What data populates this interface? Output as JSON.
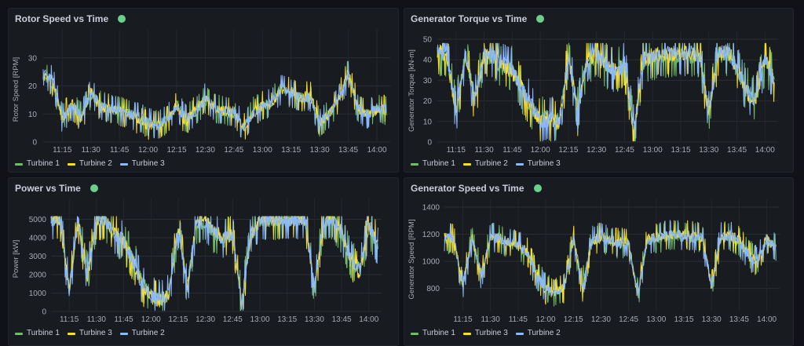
{
  "colors": {
    "background": "#111217",
    "panel": "#181b1f",
    "status_ok": "#6ccf8e",
    "green": "#73bf69",
    "yellow": "#fade2a",
    "blue": "#8ab8ff"
  },
  "chart_data": [
    {
      "type": "line",
      "title": "Rotor Speed vs Time",
      "ylabel": "Rotor Speed [RPM]",
      "ylim": [
        0,
        37.5
      ],
      "yticks": [
        "0",
        "10",
        "20",
        "30"
      ],
      "ytick_values": [
        0,
        10,
        20,
        30
      ],
      "xticks": [
        "11:15",
        "11:30",
        "11:45",
        "12:00",
        "12:15",
        "12:30",
        "12:45",
        "13:00",
        "13:15",
        "13:30",
        "13:45",
        "14:00"
      ],
      "xrange": [
        "11:05",
        "14:07"
      ],
      "x_step_minutes": 5,
      "x_start": "11:05",
      "grid": true,
      "legend": "bottom-left",
      "series": [
        {
          "name": "Turbine 1",
          "color": "#73bf69",
          "values": [
            24,
            21,
            9,
            13,
            9,
            17,
            13,
            12,
            11,
            10,
            9,
            7,
            6,
            8,
            14,
            8,
            11,
            15,
            12,
            11,
            10,
            5,
            11,
            13,
            14,
            20,
            17,
            16,
            16,
            7,
            10,
            15,
            25,
            12,
            10,
            12,
            11
          ]
        },
        {
          "name": "Turbine 2",
          "color": "#fade2a",
          "values": [
            23,
            22,
            8,
            14,
            8,
            18,
            12,
            12,
            11,
            10,
            8,
            6,
            6,
            8,
            13,
            7,
            12,
            16,
            12,
            11,
            11,
            5,
            10,
            13,
            13,
            19,
            18,
            16,
            17,
            7,
            10,
            16,
            25,
            12,
            10,
            11,
            12
          ]
        },
        {
          "name": "Turbine 3",
          "color": "#8ab8ff",
          "values": [
            25,
            22,
            8,
            13,
            9,
            18,
            13,
            12,
            11,
            10,
            9,
            7,
            6,
            8,
            13,
            8,
            11,
            16,
            12,
            11,
            11,
            5,
            10,
            13,
            14,
            19,
            17,
            16,
            16,
            7,
            10,
            15,
            24,
            12,
            10,
            12,
            12
          ]
        }
      ]
    },
    {
      "type": "line",
      "title": "Generator Torque vs Time",
      "ylabel": "Generator Torque [kN-m]",
      "ylim": [
        0,
        50
      ],
      "yticks": [
        "0",
        "10",
        "20",
        "30",
        "40",
        "50"
      ],
      "ytick_values": [
        0,
        10,
        20,
        30,
        40,
        50
      ],
      "xticks": [
        "11:15",
        "11:30",
        "11:45",
        "12:00",
        "12:15",
        "12:30",
        "12:45",
        "13:00",
        "13:15",
        "13:30",
        "13:45",
        "14:00"
      ],
      "xrange": [
        "11:05",
        "14:07"
      ],
      "x_step_minutes": 5,
      "x_start": "11:05",
      "grid": true,
      "legend": "bottom-left",
      "series": [
        {
          "name": "Turbine 1",
          "color": "#73bf69",
          "values": [
            43,
            42,
            15,
            42,
            22,
            42,
            41,
            36,
            36,
            25,
            17,
            11,
            12,
            10,
            41,
            16,
            39,
            42,
            37,
            33,
            39,
            6,
            39,
            41,
            42,
            42,
            42,
            42,
            42,
            16,
            42,
            43,
            35,
            26,
            21,
            39,
            31
          ]
        },
        {
          "name": "Turbine 2",
          "color": "#fade2a",
          "values": [
            44,
            43,
            13,
            43,
            20,
            43,
            42,
            38,
            34,
            27,
            17,
            10,
            11,
            9,
            42,
            14,
            40,
            43,
            38,
            35,
            38,
            5,
            40,
            42,
            43,
            43,
            43,
            43,
            43,
            14,
            43,
            44,
            37,
            24,
            20,
            41,
            30
          ]
        },
        {
          "name": "Turbine 3",
          "color": "#8ab8ff",
          "values": [
            44,
            43,
            14,
            43,
            21,
            43,
            42,
            38,
            35,
            26,
            18,
            10,
            12,
            9,
            42,
            15,
            40,
            43,
            38,
            34,
            38,
            6,
            40,
            42,
            43,
            43,
            43,
            43,
            43,
            15,
            43,
            44,
            36,
            25,
            20,
            40,
            30
          ]
        }
      ]
    },
    {
      "type": "line",
      "title": "Power vs Time",
      "ylabel": "Power [kW]",
      "ylim": [
        0,
        5700
      ],
      "yticks": [
        "0",
        "1000",
        "2000",
        "3000",
        "4000",
        "5000"
      ],
      "ytick_values": [
        0,
        1000,
        2000,
        3000,
        4000,
        5000
      ],
      "xticks": [
        "11:15",
        "11:30",
        "11:45",
        "12:00",
        "12:15",
        "12:30",
        "12:45",
        "13:00",
        "13:15",
        "13:30",
        "13:45",
        "14:00"
      ],
      "xrange": [
        "11:05",
        "14:07"
      ],
      "x_step_minutes": 5,
      "x_start": "11:05",
      "grid": true,
      "legend": "bottom-left",
      "series": [
        {
          "name": "Turbine 1",
          "color": "#73bf69",
          "values": [
            5000,
            5000,
            1300,
            4850,
            2000,
            5000,
            4900,
            4100,
            3700,
            2900,
            1600,
            900,
            600,
            1100,
            4500,
            1400,
            4700,
            4900,
            4200,
            3800,
            4300,
            450,
            4100,
            4950,
            4950,
            5000,
            5000,
            5000,
            5000,
            1300,
            4950,
            5000,
            4100,
            2900,
            2300,
            4600,
            3500
          ]
        },
        {
          "name": "Turbine 3",
          "color": "#fade2a",
          "values": [
            5000,
            4950,
            1100,
            4900,
            1800,
            5000,
            4900,
            4300,
            3900,
            2700,
            1500,
            800,
            550,
            1000,
            4600,
            1200,
            4800,
            4900,
            4400,
            4000,
            4200,
            350,
            4200,
            4950,
            4950,
            5000,
            5000,
            5000,
            5000,
            1100,
            4950,
            5000,
            4300,
            2700,
            2100,
            4700,
            3600
          ]
        },
        {
          "name": "Turbine 2",
          "color": "#8ab8ff",
          "values": [
            5000,
            5000,
            1200,
            4900,
            1900,
            5000,
            4900,
            4200,
            3800,
            2800,
            1500,
            800,
            600,
            1000,
            4600,
            1300,
            4800,
            4900,
            4300,
            3900,
            4200,
            400,
            4200,
            4950,
            4950,
            5000,
            5000,
            5000,
            5000,
            1200,
            4950,
            5000,
            4200,
            2800,
            2200,
            4700,
            3500
          ]
        }
      ]
    },
    {
      "type": "line",
      "title": "Generator Speed vs Time",
      "ylabel": "Generator Speed [RPM]",
      "ylim": [
        630,
        1400
      ],
      "yticks": [
        "800",
        "1000",
        "1200",
        "1400"
      ],
      "ytick_values": [
        800,
        1000,
        1200,
        1400
      ],
      "xticks": [
        "11:15",
        "11:30",
        "11:45",
        "12:00",
        "12:15",
        "12:30",
        "12:45",
        "13:00",
        "13:15",
        "13:30",
        "13:45",
        "14:00"
      ],
      "xrange": [
        "11:05",
        "14:07"
      ],
      "x_step_minutes": 5,
      "x_start": "11:05",
      "grid": true,
      "legend": "bottom-left",
      "series": [
        {
          "name": "Turbine 1",
          "color": "#73bf69",
          "values": [
            1170,
            1160,
            830,
            1160,
            910,
            1170,
            1160,
            1130,
            1120,
            1050,
            910,
            810,
            770,
            810,
            1160,
            830,
            1140,
            1170,
            1140,
            1120,
            1150,
            750,
            1140,
            1170,
            1180,
            1190,
            1180,
            1170,
            1170,
            830,
            1170,
            1180,
            1140,
            1060,
            1010,
            1160,
            1100
          ]
        },
        {
          "name": "Turbine 3",
          "color": "#fade2a",
          "values": [
            1190,
            1170,
            810,
            1180,
            890,
            1180,
            1170,
            1150,
            1110,
            1070,
            900,
            790,
            760,
            800,
            1170,
            810,
            1150,
            1180,
            1160,
            1140,
            1140,
            740,
            1160,
            1180,
            1190,
            1200,
            1200,
            1190,
            1180,
            810,
            1180,
            1190,
            1160,
            1040,
            990,
            1180,
            1090
          ]
        },
        {
          "name": "Turbine 2",
          "color": "#8ab8ff",
          "values": [
            1180,
            1170,
            820,
            1170,
            900,
            1180,
            1170,
            1140,
            1120,
            1060,
            900,
            800,
            760,
            800,
            1170,
            820,
            1150,
            1180,
            1150,
            1130,
            1150,
            740,
            1150,
            1180,
            1190,
            1200,
            1190,
            1180,
            1180,
            820,
            1180,
            1190,
            1150,
            1050,
            1000,
            1170,
            1100
          ]
        }
      ]
    }
  ]
}
